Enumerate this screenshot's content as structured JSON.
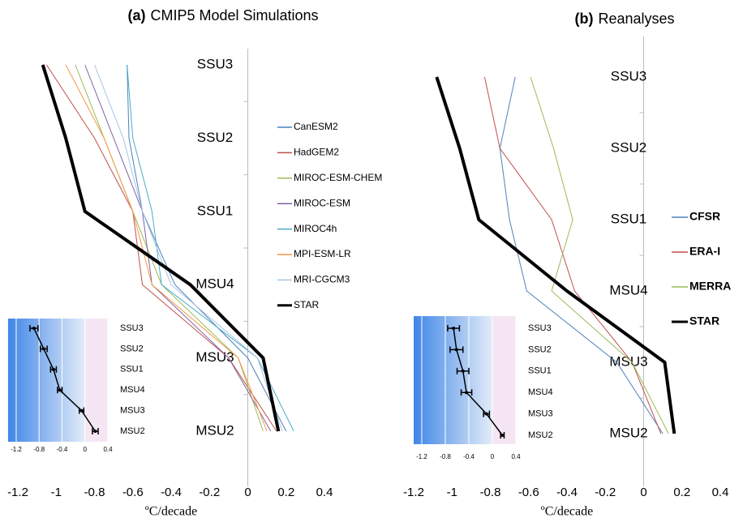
{
  "chart_data": [
    {
      "type": "line",
      "panel_label": "(a)",
      "title": "CMIP5 Model Simulations",
      "xlabel": "ºC/decade",
      "categories": [
        "SSU3",
        "SSU2",
        "SSU1",
        "MSU4",
        "MSU3",
        "MSU2"
      ],
      "xlim": [
        -1.2,
        0.4
      ],
      "xticks": [
        -1.2,
        -1,
        -0.8,
        -0.6,
        -0.4,
        -0.2,
        0,
        0.2,
        0.4
      ],
      "series": [
        {
          "name": "CanESM2",
          "color": "#4f81bd",
          "values": [
            -0.63,
            -0.62,
            -0.55,
            -0.38,
            0.0,
            0.2
          ]
        },
        {
          "name": "HadGEM2",
          "color": "#c0504d",
          "values": [
            -1.05,
            -0.8,
            -0.6,
            -0.55,
            -0.1,
            0.15
          ]
        },
        {
          "name": "MIROC-ESM-CHEM",
          "color": "#9bbb59",
          "values": [
            -0.9,
            -0.75,
            -0.6,
            -0.45,
            -0.05,
            0.08
          ]
        },
        {
          "name": "MIROC-ESM",
          "color": "#8064a2",
          "values": [
            -0.85,
            -0.7,
            -0.55,
            -0.5,
            -0.1,
            0.12
          ]
        },
        {
          "name": "MIROC4h",
          "color": "#4bacc6",
          "values": [
            -0.63,
            -0.6,
            -0.5,
            -0.45,
            0.05,
            0.24
          ]
        },
        {
          "name": "MPI-ESM-LR",
          "color": "#f79646",
          "values": [
            -0.95,
            -0.75,
            -0.6,
            -0.5,
            -0.05,
            0.1
          ]
        },
        {
          "name": "MRI-CGCM3",
          "color": "#a9c4e4",
          "values": [
            -0.8,
            -0.65,
            -0.55,
            -0.4,
            0.05,
            0.18
          ]
        },
        {
          "name": "STAR",
          "color": "#000000",
          "values": [
            -1.07,
            -0.95,
            -0.85,
            -0.3,
            0.08,
            0.16
          ]
        }
      ]
    },
    {
      "type": "errorbar",
      "categories": [
        "SSU3",
        "SSU2",
        "SSU1",
        "MSU4",
        "MSU3",
        "MSU2"
      ],
      "values": [
        -0.89,
        -0.72,
        -0.55,
        -0.44,
        -0.06,
        0.18
      ],
      "errors": [
        0.07,
        0.06,
        0.05,
        0.04,
        0.04,
        0.05
      ],
      "color": "#000000",
      "xlim": [
        -1.2,
        0.4
      ],
      "xticks": [
        -1.2,
        -0.8,
        -0.4,
        0,
        0.4
      ],
      "grid": true
    },
    {
      "type": "line",
      "panel_label": "(b)",
      "title": "Reanalyses",
      "xlabel": "ºC/decade",
      "categories": [
        "SSU3",
        "SSU2",
        "SSU1",
        "MSU4",
        "MSU3",
        "MSU2"
      ],
      "xlim": [
        -1.2,
        0.4
      ],
      "xticks": [
        -1.2,
        -1,
        -0.8,
        -0.6,
        -0.4,
        -0.2,
        0,
        0.2,
        0.4
      ],
      "series": [
        {
          "name": "CFSR",
          "color": "#4f81bd",
          "values": [
            -0.67,
            -0.75,
            -0.7,
            -0.61,
            -0.14,
            0.1
          ]
        },
        {
          "name": "ERA-I",
          "color": "#c0504d",
          "values": [
            -0.83,
            -0.75,
            -0.48,
            -0.36,
            -0.06,
            0.09
          ]
        },
        {
          "name": "MERRA",
          "color": "#9bbb59",
          "values": [
            -0.59,
            -0.47,
            -0.37,
            -0.48,
            -0.06,
            0.13
          ]
        },
        {
          "name": "STAR",
          "color": "#000000",
          "values": [
            -1.08,
            -0.96,
            -0.86,
            -0.4,
            0.11,
            0.16
          ]
        }
      ]
    },
    {
      "type": "errorbar",
      "categories": [
        "SSU3",
        "SSU2",
        "SSU1",
        "MSU4",
        "MSU3",
        "MSU2"
      ],
      "values": [
        -0.66,
        -0.61,
        -0.5,
        -0.44,
        -0.1,
        0.17
      ],
      "errors": [
        0.1,
        0.11,
        0.1,
        0.09,
        0.05,
        0.03
      ],
      "color": "#000000",
      "xlim": [
        -1.2,
        0.4
      ],
      "xticks": [
        -1.2,
        -0.8,
        -0.4,
        0,
        0.4
      ],
      "grid": true
    }
  ]
}
